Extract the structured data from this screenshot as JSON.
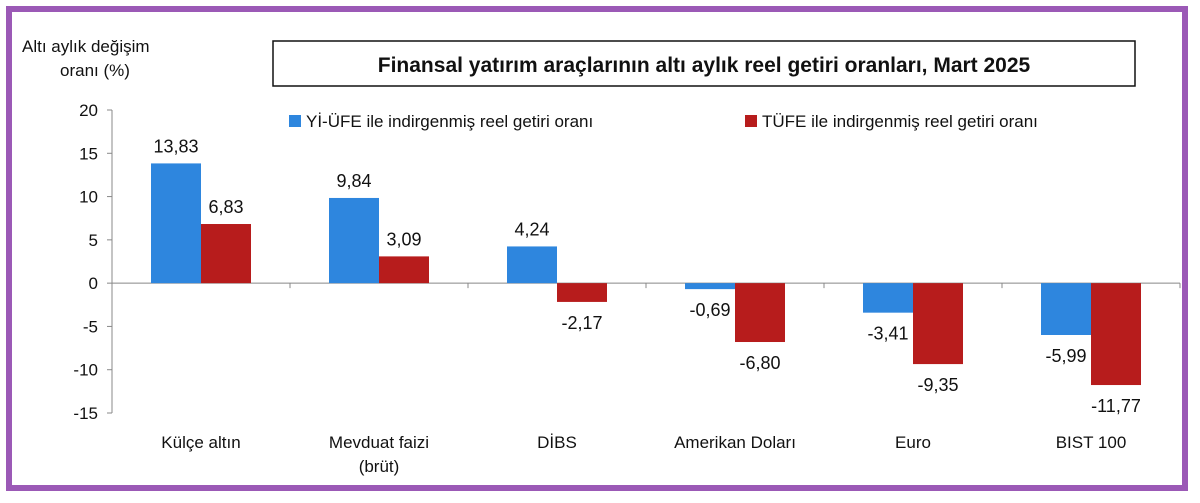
{
  "chart_data": {
    "type": "bar",
    "title": "Finansal yatırım araçlarının altı aylık reel getiri oranları, Mart 2025",
    "ylabel_lines": [
      "Altı aylık değişim",
      "oranı (%)"
    ],
    "xlabel": "",
    "ylim": [
      -15,
      20
    ],
    "yticks": [
      20,
      15,
      10,
      5,
      0,
      -5,
      -10,
      -15
    ],
    "categories": [
      [
        "Külçe altın"
      ],
      [
        "Mevduat faizi",
        "(brüt)"
      ],
      [
        "DİBS"
      ],
      [
        "Amerikan Doları"
      ],
      [
        "Euro"
      ],
      [
        "BIST 100"
      ]
    ],
    "series": [
      {
        "name": "Yİ-ÜFE ile indirgenmiş reel getiri oranı",
        "color": "#2e86de",
        "values": [
          13.83,
          9.84,
          4.24,
          -0.69,
          -3.41,
          -5.99
        ],
        "labels": [
          "13,83",
          "9,84",
          "4,24",
          "-0,69",
          "-3,41",
          "-5,99"
        ]
      },
      {
        "name": "TÜFE ile indirgenmiş reel getiri oranı",
        "color": "#b71c1c",
        "values": [
          6.83,
          3.09,
          -2.17,
          -6.8,
          -9.35,
          -11.77
        ],
        "labels": [
          "6,83",
          "3,09",
          "-2,17",
          "-6,80",
          "-9,35",
          "-11,77"
        ]
      }
    ],
    "grid": false,
    "legend_position": "top"
  },
  "colors": {
    "frame": "#9b59b6",
    "series1": "#2e86de",
    "series2": "#b71c1c"
  }
}
